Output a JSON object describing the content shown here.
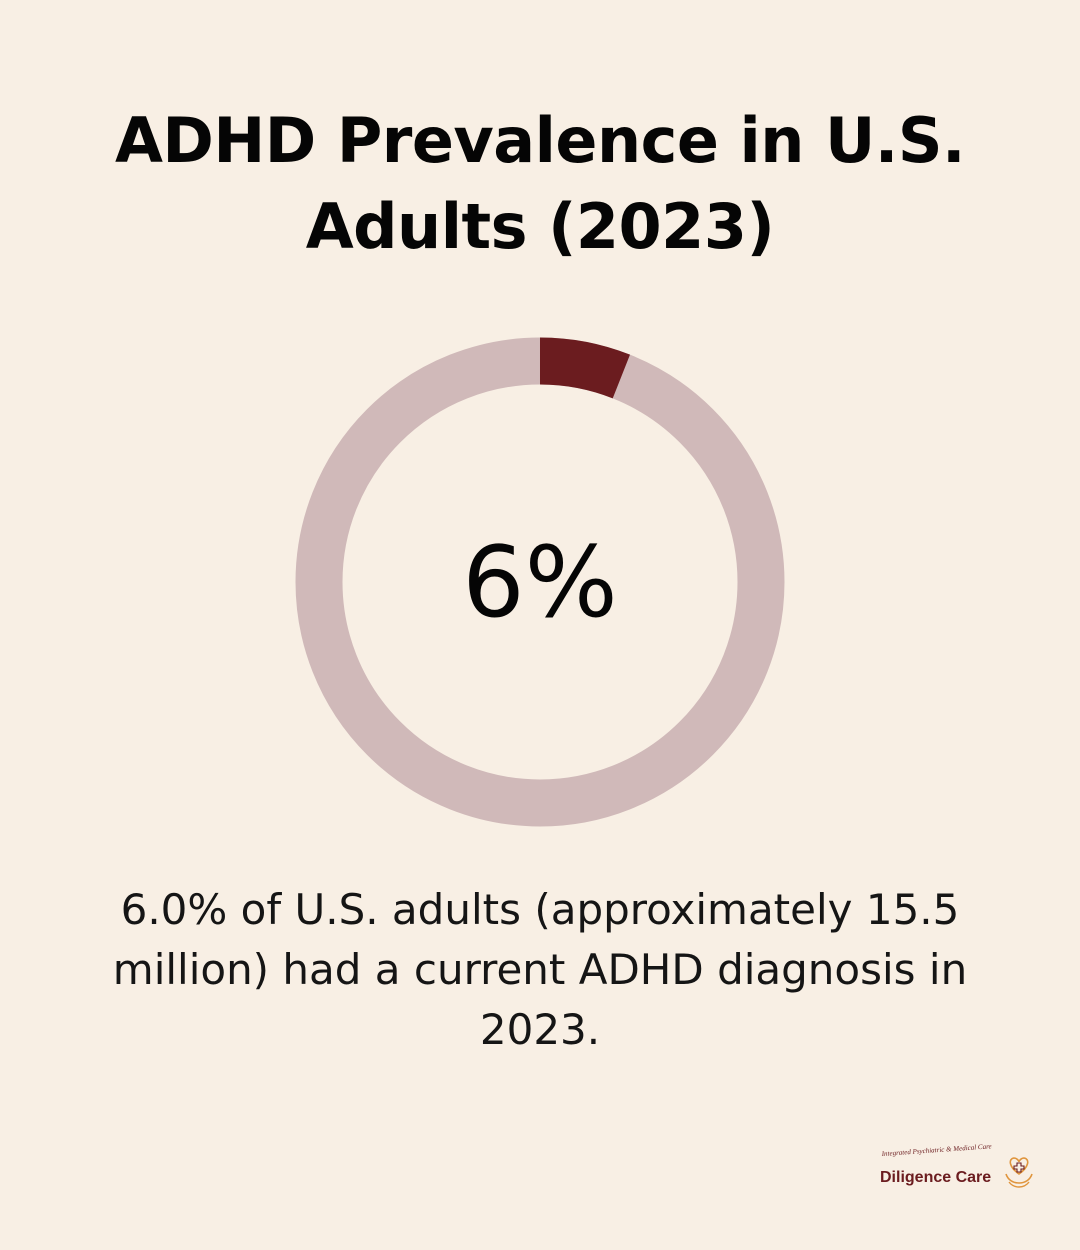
{
  "title": "ADHD Prevalence in U.S. Adults (2023)",
  "description": "6.0% of U.S. adults (approximately 15.5 million) had a current ADHD diagnosis in 2023.",
  "chart_data": {
    "type": "pie",
    "title": "ADHD Prevalence in U.S. Adults (2023)",
    "center_label": "6%",
    "value": 6,
    "total": 100,
    "slices": [
      {
        "value": 6,
        "color": "#6b1c1f"
      },
      {
        "value": 94,
        "color": "#d0b9b9"
      }
    ]
  },
  "logo": {
    "name": "Diligence Care",
    "tagline": "Integrated Psychiatric & Medical Care",
    "icon": "heart-hands-icon",
    "color": "#6b1c1f",
    "accent": "#e0953d"
  },
  "colors": {
    "background": "#f8efe4",
    "highlight": "#6b1c1f",
    "track": "#d0b9b9",
    "text": "#050505"
  }
}
